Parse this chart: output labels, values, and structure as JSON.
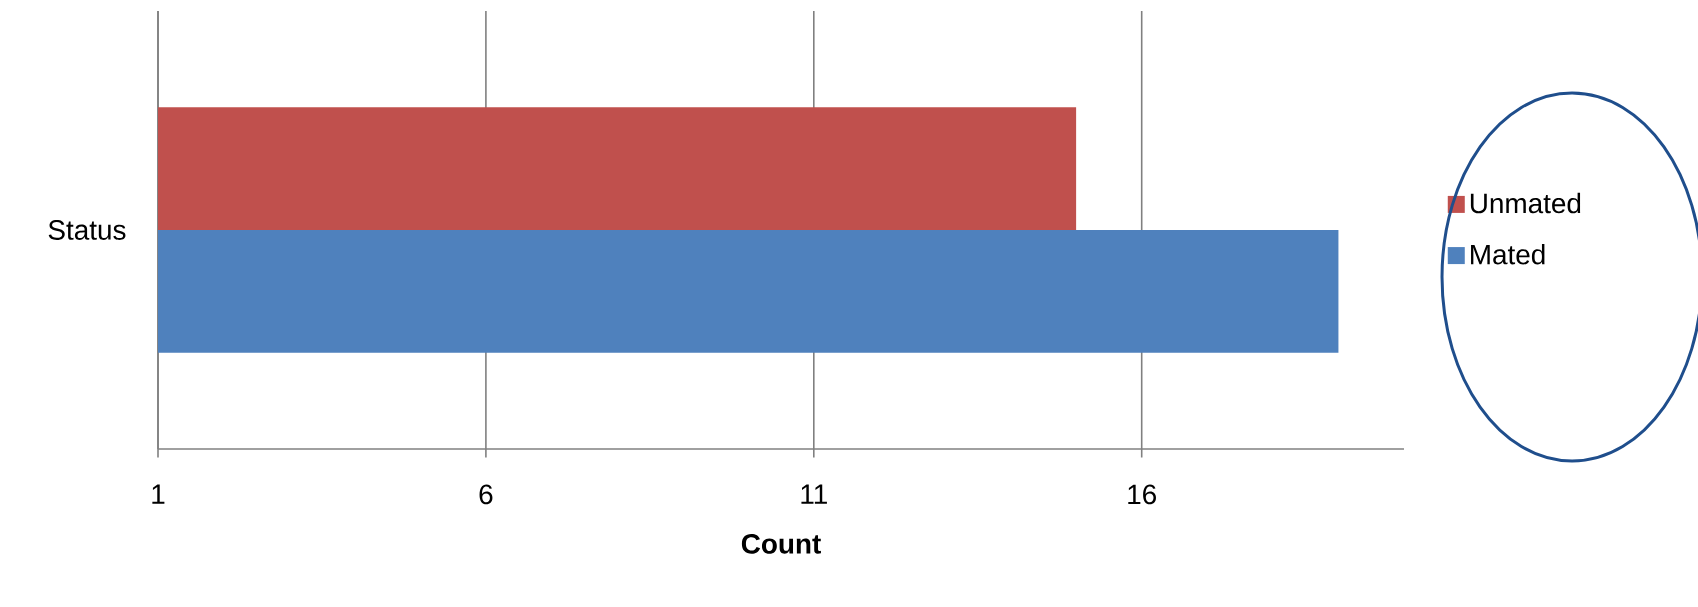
{
  "chart_data": {
    "type": "bar",
    "orientation": "horizontal",
    "categories": [
      "Status"
    ],
    "xlabel": "Count",
    "series": [
      {
        "name": "Unmated",
        "color": "#c0504d",
        "values": [
          15
        ]
      },
      {
        "name": "Mated",
        "color": "#4f81bd",
        "values": [
          19
        ]
      }
    ],
    "xlim": [
      1,
      20
    ],
    "xticks": [
      1,
      6,
      11,
      16
    ],
    "grid": "x",
    "legend": "right"
  }
}
